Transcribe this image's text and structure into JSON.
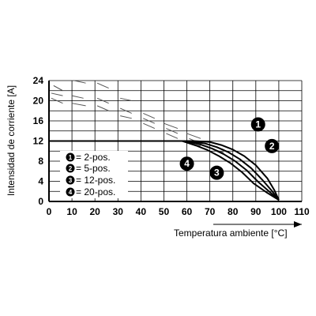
{
  "chart_data": {
    "type": "line",
    "xlabel": "Temperatura ambiente [°C]",
    "ylabel": "Intensidad de corriente [A]",
    "xlim": [
      0,
      110
    ],
    "ylim": [
      0,
      24
    ],
    "x_ticks": [
      "0",
      "10",
      "20",
      "30",
      "40",
      "50",
      "60",
      "70",
      "80",
      "90",
      "100",
      "110"
    ],
    "y_ticks": [
      "0",
      "4",
      "8",
      "12",
      "16",
      "20",
      "24"
    ],
    "x_tick_values": [
      0,
      10,
      20,
      30,
      40,
      50,
      60,
      70,
      80,
      90,
      100,
      110
    ],
    "y_tick_values": [
      0,
      4,
      8,
      12,
      16,
      20,
      24
    ],
    "x_grid_values": [
      0,
      10,
      20,
      30,
      40,
      50,
      60,
      70,
      80,
      90,
      100,
      110
    ],
    "y_grid_values": [
      0,
      2,
      4,
      6,
      8,
      10,
      12,
      14,
      16,
      18,
      20,
      22,
      24
    ],
    "grid": true,
    "colors": {
      "curve": "#000000",
      "grid": "#000000",
      "dash": "#555555"
    },
    "series": [
      {
        "marker": "1",
        "x": [
          0,
          63,
          70,
          75,
          80,
          85,
          90,
          95,
          98,
          100
        ],
        "y": [
          12,
          12,
          11.8,
          11.2,
          10.3,
          9,
          7.2,
          4.6,
          2.3,
          0.3
        ]
      },
      {
        "marker": "2",
        "x": [
          0,
          61,
          68,
          73,
          78,
          83,
          88,
          93,
          97,
          100
        ],
        "y": [
          12,
          12,
          11.5,
          10.8,
          9.8,
          8.4,
          6.6,
          4.2,
          2.1,
          0.3
        ]
      },
      {
        "marker": "3",
        "x": [
          0,
          59,
          66,
          71,
          76,
          81,
          86,
          91,
          96,
          100
        ],
        "y": [
          12,
          12,
          11.3,
          10.5,
          9.4,
          8,
          6.2,
          3.9,
          1.9,
          0.3
        ]
      },
      {
        "marker": "4",
        "x": [
          0,
          58,
          64,
          69,
          74,
          79,
          84,
          89,
          95,
          100
        ],
        "y": [
          12,
          12,
          11.1,
          10.2,
          9,
          7.6,
          5.8,
          3.6,
          1.7,
          0.3
        ]
      }
    ],
    "markers": [
      {
        "label": "1",
        "x": 91,
        "y": 15.3
      },
      {
        "label": "2",
        "x": 97,
        "y": 11
      },
      {
        "label": "3",
        "x": 73,
        "y": 5.7
      },
      {
        "label": "4",
        "x": 60,
        "y": 7.5
      }
    ],
    "dashed_segments": [
      [
        2,
        23,
        6,
        22
      ],
      [
        11,
        24,
        16,
        23.5
      ],
      [
        21,
        23.5,
        26,
        22.5
      ],
      [
        1,
        21.5,
        6,
        21
      ],
      [
        10,
        21,
        15,
        20.5
      ],
      [
        21,
        20.5,
        26,
        19.5
      ],
      [
        31,
        20.5,
        36,
        20
      ],
      [
        1,
        20.5,
        6,
        19.5
      ],
      [
        10,
        19.5,
        16,
        19
      ],
      [
        21,
        19,
        26,
        18
      ],
      [
        31,
        18.5,
        36,
        17.5
      ],
      [
        41,
        17.5,
        46,
        16.5
      ],
      [
        31,
        17,
        36,
        16.5
      ],
      [
        41,
        16.5,
        46,
        15.5
      ],
      [
        50,
        15.5,
        56,
        14.5
      ],
      [
        41,
        15.5,
        46,
        14.5
      ],
      [
        51,
        14.5,
        56,
        13.5
      ],
      [
        60,
        13.5,
        66,
        12.5
      ],
      [
        51,
        13.5,
        56,
        12.5
      ],
      [
        61,
        12.5,
        66,
        11.5
      ],
      [
        71,
        11,
        76,
        10.3
      ],
      [
        61,
        11.5,
        66,
        11
      ],
      [
        71,
        10.5,
        76,
        9.7
      ]
    ]
  },
  "legend": [
    {
      "marker": "1",
      "text": "= 2-pos."
    },
    {
      "marker": "2",
      "text": "= 5-pos."
    },
    {
      "marker": "3",
      "text": "= 12-pos."
    },
    {
      "marker": "4",
      "text": "= 20-pos."
    }
  ]
}
